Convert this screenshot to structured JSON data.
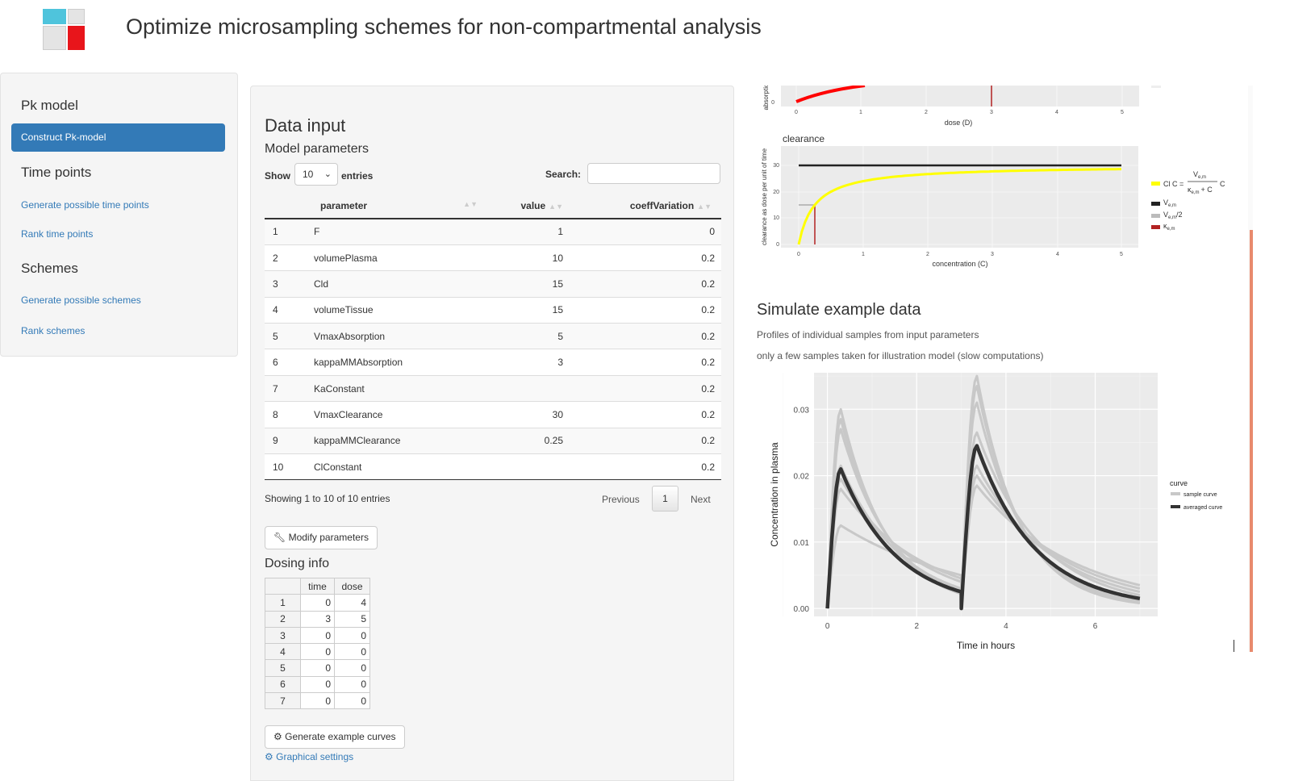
{
  "app": {
    "title": "Optimize microsampling schemes for non-compartmental analysis",
    "logo_colors": {
      "cyan": "#4fc4dc",
      "light": "#e4e4e4",
      "mid": "#d0d0d0",
      "red": "#e8151b"
    }
  },
  "sidebar": {
    "pk_heading": "Pk model",
    "pk_items": [
      "Construct Pk-model"
    ],
    "time_heading": "Time points",
    "time_items": [
      "Generate possible time points",
      "Rank time points"
    ],
    "schemes_heading": "Schemes",
    "schemes_items": [
      "Generate possible schemes",
      "Rank schemes"
    ],
    "accent": "#337ab7"
  },
  "data_input": {
    "heading": "Data input",
    "subheading": "Model parameters",
    "show_label": "Show",
    "entries_value": "10",
    "entries_label": "entries",
    "search_label": "Search:",
    "search_value": "",
    "columns": [
      "",
      "parameter",
      "value",
      "coeffVariation"
    ],
    "rows": [
      [
        "1",
        "F",
        "1",
        "0"
      ],
      [
        "2",
        "volumePlasma",
        "10",
        "0.2"
      ],
      [
        "3",
        "Cld",
        "15",
        "0.2"
      ],
      [
        "4",
        "volumeTissue",
        "15",
        "0.2"
      ],
      [
        "5",
        "VmaxAbsorption",
        "5",
        "0.2"
      ],
      [
        "6",
        "kappaMMAbsorption",
        "3",
        "0.2"
      ],
      [
        "7",
        "KaConstant",
        "",
        "0.2"
      ],
      [
        "8",
        "VmaxClearance",
        "30",
        "0.2"
      ],
      [
        "9",
        "kappaMMClearance",
        "0.25",
        "0.2"
      ],
      [
        "10",
        "ClConstant",
        "",
        "0.2"
      ]
    ],
    "info": "Showing 1 to 10 of 10 entries",
    "previous": "Previous",
    "page": "1",
    "next": "Next",
    "modify_button": "Modify parameters",
    "dosing_heading": "Dosing info",
    "dosing_columns": [
      "",
      "time",
      "dose"
    ],
    "dosing_rows": [
      [
        "1",
        "0",
        "4"
      ],
      [
        "2",
        "3",
        "5"
      ],
      [
        "3",
        "0",
        "0"
      ],
      [
        "4",
        "0",
        "0"
      ],
      [
        "5",
        "0",
        "0"
      ],
      [
        "6",
        "0",
        "0"
      ],
      [
        "7",
        "0",
        "0"
      ]
    ],
    "generate_button": "Generate example curves",
    "graphical_settings": "Graphical settings"
  },
  "top_plot": {
    "y_label": "absorptio",
    "x_label": "dose (D)",
    "x_ticks": [
      "0",
      "1",
      "2",
      "3",
      "4",
      "5"
    ],
    "y_tick": "0"
  },
  "clearance_plot": {
    "title": "clearance",
    "y_label": "clearance as dose per unit of time",
    "x_label": "concentration (C)",
    "x_ticks": [
      "0",
      "1",
      "2",
      "3",
      "4",
      "5"
    ],
    "y_ticks": [
      "0",
      "10",
      "20",
      "30"
    ],
    "legend": {
      "cl_prefix": "Cl C =",
      "frac_num": "V",
      "frac_num_sub": "e,m",
      "frac_den": "κ",
      "frac_den_sub": "e,m",
      "frac_den_suffix": "+ C",
      "frac_trail": "C",
      "vem": "V",
      "vem_sub": "e,m",
      "vem2": "V",
      "vem2_sub": "e,m",
      "vem2_suffix": "/2",
      "kem": "κ",
      "kem_sub": "e,m"
    },
    "colors": {
      "curve": "#ffff00",
      "vmax": "#222222",
      "half": "#bbbbbb",
      "kappa": "#b22222"
    }
  },
  "simulate": {
    "heading": "Simulate example data",
    "line1": "Profiles of individual samples from input parameters",
    "line2": "only a few samples taken for illustration model (slow computations)"
  },
  "chart_data": {
    "type": "line",
    "xlabel": "Time in hours",
    "ylabel": "Concentration in plasma",
    "xlim": [
      -0.3,
      7.4
    ],
    "ylim": [
      -0.0012,
      0.0355
    ],
    "x_ticks": [
      0,
      2,
      4,
      6
    ],
    "y_ticks": [
      0.0,
      0.01,
      0.02,
      0.03
    ],
    "y_tick_labels": [
      "0.00",
      "0.01",
      "0.02",
      "0.03"
    ],
    "legend_title": "curve",
    "legend_position": "right",
    "series": [
      {
        "name": "averaged curve",
        "color": "#333333",
        "peaks": [
          0.021,
          0.0245
        ],
        "trough": 0.0025,
        "end": 0.0015
      },
      {
        "name": "sample curve",
        "color": "#c8c8c8",
        "peaks": [
          0.03,
          0.035
        ],
        "trough": 0.0022,
        "end": 0.0008
      },
      {
        "name": "sample curve",
        "color": "#c8c8c8",
        "peaks": [
          0.0285,
          0.0335
        ],
        "trough": 0.0024,
        "end": 0.0009
      },
      {
        "name": "sample curve",
        "color": "#c8c8c8",
        "peaks": [
          0.027,
          0.031
        ],
        "trough": 0.0026,
        "end": 0.0011
      },
      {
        "name": "sample curve",
        "color": "#c8c8c8",
        "peaks": [
          0.0215,
          0.0265
        ],
        "trough": 0.003,
        "end": 0.002
      },
      {
        "name": "sample curve",
        "color": "#c8c8c8",
        "peaks": [
          0.0195,
          0.0215
        ],
        "trough": 0.004,
        "end": 0.0025
      },
      {
        "name": "sample curve",
        "color": "#c8c8c8",
        "peaks": [
          0.018,
          0.02
        ],
        "trough": 0.0045,
        "end": 0.003
      },
      {
        "name": "sample curve",
        "color": "#c8c8c8",
        "peaks": [
          0.0125,
          0.0185
        ],
        "trough": 0.005,
        "end": 0.0035
      }
    ],
    "legend_items": [
      "sample curve",
      "averaged curve"
    ]
  }
}
